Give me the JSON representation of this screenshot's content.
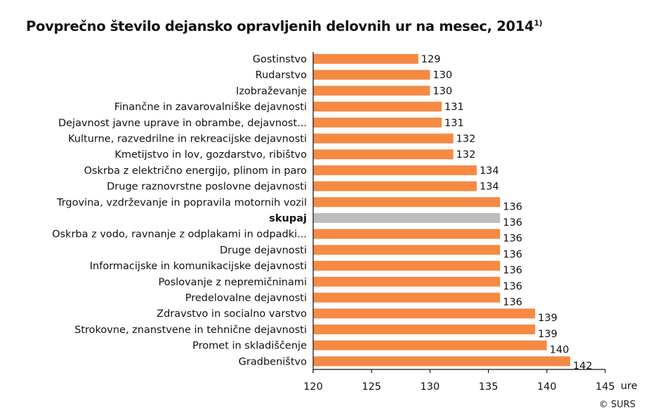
{
  "chart_data": {
    "type": "bar",
    "orientation": "horizontal",
    "title": "Povprečno število dejansko opravljenih delovnih ur na mesec, 2014",
    "title_footnote": "1)",
    "xlabel": "ure",
    "xlim": [
      120,
      145
    ],
    "xticks": [
      120,
      125,
      130,
      135,
      140,
      145
    ],
    "grid": false,
    "colors": {
      "default": "#F58A44",
      "highlight": "#BDBDBD"
    },
    "highlight_category": "skupaj",
    "categories": [
      "Gostinstvo",
      "Rudarstvo",
      "Izobraževanje",
      "Finančne in zavarovalniške dejavnosti",
      "Dejavnost javne uprave in obrambe, dejavnost...",
      "Kulturne, razvedrilne in rekreacijske dejavnosti",
      "Kmetijstvo in lov, gozdarstvo, ribištvo",
      "Oskrba z električno energijo, plinom in paro",
      "Druge raznovrstne poslovne dejavnosti",
      "Trgovina, vzdrževanje in popravila motornih vozil",
      "skupaj",
      "Oskrba z vodo, ravnanje z odplakami in odpadki...",
      "Druge dejavnosti",
      "Informacijske in komunikacijske dejavnosti",
      "Poslovanje z nepremičninami",
      "Predelovalne dejavnosti",
      "Zdravstvo in socialno varstvo",
      "Strokovne, znanstvene in tehnične dejavnosti",
      "Promet in skladiščenje",
      "Gradbeništvo"
    ],
    "values": [
      129,
      130,
      130,
      131,
      131,
      132,
      132,
      134,
      134,
      136,
      136,
      136,
      136,
      136,
      136,
      136,
      139,
      139,
      140,
      142
    ]
  },
  "credit": "© SURS"
}
